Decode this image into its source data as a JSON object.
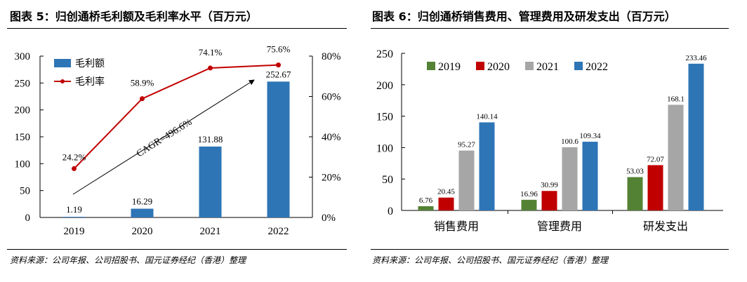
{
  "left": {
    "title": "图表 5：归创通桥毛利额及毛利率水平（百万元）",
    "source": "资料来源：公司年报、公司招股书、国元证券经纪（香港）整理"
  },
  "right": {
    "title": "图表 6：归创通桥销售费用、管理费用及研发支出（百万元）",
    "source": "资料来源：公司年报、公司招股书、国元证券经纪（香港）整理"
  },
  "chart_data": [
    {
      "type": "bar+line",
      "categories": [
        "2019",
        "2020",
        "2021",
        "2022"
      ],
      "series": [
        {
          "name": "毛利额",
          "type": "bar",
          "axis": "left",
          "color": "#2E75B6",
          "values": [
            1.19,
            16.29,
            131.88,
            252.67
          ],
          "labels": [
            "1.19",
            "16.29",
            "131.88",
            "252.67"
          ]
        },
        {
          "name": "毛利率",
          "type": "line",
          "axis": "right",
          "color": "#C00000",
          "values": [
            24.2,
            58.9,
            74.1,
            75.6
          ],
          "labels": [
            "24.2%",
            "58.9%",
            "74.1%",
            "75.6%"
          ]
        }
      ],
      "ylim": [
        0,
        300
      ],
      "yticks": [
        "0",
        "50",
        "100",
        "150",
        "200",
        "250",
        "300"
      ],
      "y2lim": [
        0,
        80
      ],
      "y2ticks": [
        "0%",
        "20%",
        "40%",
        "60%",
        "80%"
      ],
      "annotation": "CAGR=496.6%",
      "legend": "top-left",
      "grid": false
    },
    {
      "type": "bar",
      "categories": [
        "销售费用",
        "管理费用",
        "研发支出"
      ],
      "series": [
        {
          "name": "2019",
          "color": "#548235",
          "values": [
            6.76,
            16.96,
            53.03
          ],
          "labels": [
            "6.76",
            "16.96",
            "53.03"
          ]
        },
        {
          "name": "2020",
          "color": "#C00000",
          "values": [
            20.45,
            30.99,
            72.07
          ],
          "labels": [
            "20.45",
            "30.99",
            "72.07"
          ]
        },
        {
          "name": "2021",
          "color": "#A6A6A6",
          "values": [
            95.27,
            100.6,
            168.1
          ],
          "labels": [
            "95.27",
            "100.6",
            "168.1"
          ]
        },
        {
          "name": "2022",
          "color": "#2E75B6",
          "values": [
            140.14,
            109.34,
            233.46
          ],
          "labels": [
            "140.14",
            "109.34",
            "233.46"
          ]
        }
      ],
      "ylim": [
        0,
        250
      ],
      "yticks": [
        "0",
        "50",
        "100",
        "150",
        "200",
        "250"
      ],
      "legend": "top",
      "grid": false
    }
  ]
}
